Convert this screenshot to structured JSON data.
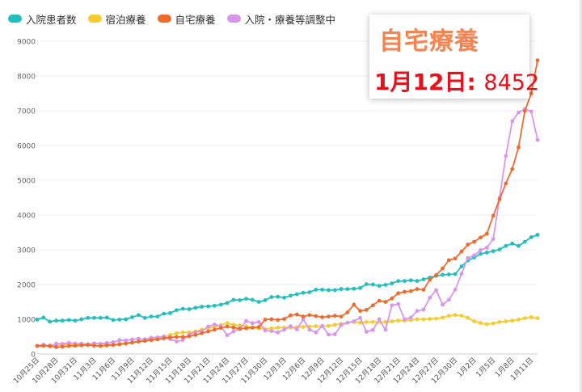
{
  "legend": {
    "items": [
      {
        "label": "入院患者数",
        "color": "#1fc0be"
      },
      {
        "label": "宿泊療養",
        "color": "#f6cb2d"
      },
      {
        "label": "自宅療養",
        "color": "#ef6a2c"
      },
      {
        "label": "入院・療養等調整中",
        "color": "#d995ec"
      }
    ]
  },
  "tooltip": {
    "title": "自宅療養",
    "date": "1月12日:",
    "value": "8452"
  },
  "chart_data": {
    "type": "line",
    "title": "",
    "xlabel": "",
    "ylabel": "",
    "ylim": [
      0,
      9000
    ],
    "yticks": [
      "0",
      "1000",
      "2000",
      "3000",
      "4000",
      "5000",
      "6000",
      "7000",
      "8000",
      "9000"
    ],
    "x": [
      "10月25日",
      "10月26日",
      "10月27日",
      "10月28日",
      "10月29日",
      "10月30日",
      "10月31日",
      "11月1日",
      "11月2日",
      "11月3日",
      "11月4日",
      "11月5日",
      "11月6日",
      "11月7日",
      "11月8日",
      "11月9日",
      "11月10日",
      "11月11日",
      "11月12日",
      "11月13日",
      "11月14日",
      "11月15日",
      "11月16日",
      "11月17日",
      "11月18日",
      "11月19日",
      "11月20日",
      "11月21日",
      "11月22日",
      "11月23日",
      "11月24日",
      "11月25日",
      "11月26日",
      "11月27日",
      "11月28日",
      "11月29日",
      "11月30日",
      "12月1日",
      "12月2日",
      "12月3日",
      "12月4日",
      "12月5日",
      "12月6日",
      "12月7日",
      "12月8日",
      "12月9日",
      "12月10日",
      "12月11日",
      "12月12日",
      "12月13日",
      "12月14日",
      "12月15日",
      "12月16日",
      "12月17日",
      "12月18日",
      "12月19日",
      "12月20日",
      "12月21日",
      "12月22日",
      "12月23日",
      "12月24日",
      "12月25日",
      "12月26日",
      "12月27日",
      "12月28日",
      "12月29日",
      "12月30日",
      "12月31日",
      "1月1日",
      "1月2日",
      "1月3日",
      "1月4日",
      "1月5日",
      "1月6日",
      "1月7日",
      "1月8日",
      "1月9日",
      "1月10日",
      "1月11日",
      "1月12日"
    ],
    "xtick_labels": [
      "10月25日",
      "10月28日",
      "10月31日",
      "11月3日",
      "11月6日",
      "11月9日",
      "11月12日",
      "11月15日",
      "11月18日",
      "11月21日",
      "11月24日",
      "11月27日",
      "11月30日",
      "12月3日",
      "12月6日",
      "12月9日",
      "12月12日",
      "12月15日",
      "12月18日",
      "12月21日",
      "12月24日",
      "12月27日",
      "12月30日",
      "1月2日",
      "1月5日",
      "1月8日",
      "1月11日"
    ],
    "series": [
      {
        "name": "入院患者数",
        "color": "#1fc0be",
        "values": [
          990,
          1050,
          930,
          960,
          960,
          980,
          960,
          1000,
          1040,
          1040,
          1040,
          1050,
          980,
          990,
          1000,
          1060,
          1120,
          1040,
          1080,
          1080,
          1160,
          1180,
          1260,
          1300,
          1290,
          1330,
          1360,
          1370,
          1390,
          1420,
          1470,
          1560,
          1550,
          1590,
          1560,
          1500,
          1550,
          1640,
          1650,
          1620,
          1680,
          1720,
          1760,
          1780,
          1850,
          1850,
          1840,
          1840,
          1870,
          1870,
          1880,
          1900,
          2010,
          2000,
          1960,
          1990,
          2030,
          2100,
          2100,
          2120,
          2100,
          2150,
          2200,
          2250,
          2280,
          2290,
          2300,
          2520,
          2690,
          2780,
          2880,
          2920,
          2960,
          3010,
          3110,
          3180,
          3110,
          3230,
          3360,
          3430
        ]
      },
      {
        "name": "宿泊療養",
        "color": "#f6cb2d",
        "values": [
          230,
          230,
          250,
          250,
          260,
          280,
          270,
          280,
          280,
          300,
          290,
          280,
          270,
          300,
          320,
          330,
          360,
          380,
          420,
          450,
          480,
          550,
          600,
          620,
          620,
          650,
          700,
          740,
          780,
          830,
          890,
          840,
          820,
          800,
          760,
          740,
          720,
          740,
          760,
          760,
          760,
          770,
          780,
          790,
          800,
          800,
          810,
          840,
          870,
          900,
          920,
          900,
          920,
          920,
          920,
          920,
          940,
          960,
          960,
          980,
          1000,
          1000,
          1010,
          1020,
          1050,
          1100,
          1120,
          1100,
          1040,
          940,
          890,
          860,
          880,
          920,
          940,
          960,
          990,
          1030,
          1060,
          1030
        ]
      },
      {
        "name": "自宅療養",
        "color": "#ef6a2c",
        "values": [
          230,
          240,
          230,
          200,
          210,
          230,
          240,
          250,
          260,
          240,
          230,
          250,
          260,
          280,
          300,
          330,
          360,
          380,
          400,
          420,
          450,
          480,
          490,
          490,
          510,
          550,
          600,
          650,
          700,
          750,
          790,
          760,
          730,
          740,
          760,
          780,
          990,
          1000,
          980,
          1010,
          1110,
          1140,
          1080,
          1120,
          1090,
          1060,
          1080,
          1100,
          1080,
          1200,
          1420,
          1240,
          1270,
          1400,
          1530,
          1500,
          1600,
          1750,
          1790,
          1810,
          1870,
          1850,
          2140,
          2270,
          2460,
          2700,
          2750,
          2950,
          3150,
          3230,
          3350,
          3460,
          3980,
          4450,
          4910,
          5320,
          5950,
          6990,
          7500,
          8452
        ]
      },
      {
        "name": "入院・療養等調整中",
        "color": "#d995ec",
        "values": [
          240,
          270,
          220,
          300,
          290,
          320,
          300,
          300,
          280,
          310,
          290,
          320,
          340,
          400,
          390,
          420,
          440,
          420,
          470,
          480,
          510,
          430,
          360,
          400,
          560,
          630,
          660,
          790,
          850,
          800,
          540,
          650,
          720,
          950,
          890,
          920,
          680,
          660,
          620,
          700,
          800,
          710,
          1000,
          700,
          620,
          810,
          560,
          570,
          830,
          900,
          940,
          1040,
          640,
          690,
          1000,
          700,
          1400,
          1440,
          1000,
          1050,
          1240,
          1280,
          1620,
          1840,
          1420,
          1560,
          1850,
          2310,
          2760,
          2840,
          2990,
          3060,
          3310,
          4500,
          5700,
          6700,
          6950,
          7050,
          6980,
          6160
        ]
      }
    ]
  }
}
